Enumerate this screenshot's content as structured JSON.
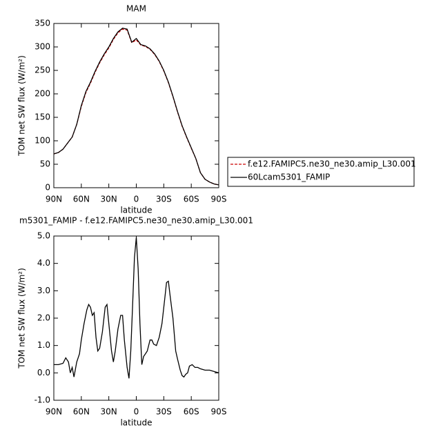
{
  "chart_data": [
    {
      "type": "line",
      "title": "MAM",
      "x_label": "latitude",
      "y_label": "TOM net SW flux (W/m²)",
      "xlim": [
        90,
        -90
      ],
      "xticks": [
        {
          "value": 90,
          "label": "90N"
        },
        {
          "value": 60,
          "label": "60N"
        },
        {
          "value": 30,
          "label": "30N"
        },
        0,
        {
          "value": -30,
          "label": "30S"
        },
        {
          "value": -60,
          "label": "60S"
        },
        {
          "value": -90,
          "label": "90S"
        }
      ],
      "ylim": [
        0,
        350
      ],
      "yticks": [
        0,
        50,
        100,
        150,
        200,
        250,
        300,
        350
      ],
      "legend": "right",
      "x": [
        90,
        85,
        80,
        75,
        70,
        65,
        60,
        55,
        50,
        45,
        40,
        35,
        30,
        25,
        20,
        15,
        10,
        5,
        0,
        -5,
        -10,
        -15,
        -20,
        -25,
        -30,
        -35,
        -40,
        -45,
        -50,
        -55,
        -60,
        -65,
        -70,
        -75,
        -80,
        -85,
        -90
      ],
      "series": [
        {
          "name": "f.e12.FAMIPC5.ne30_ne30.amip_L30.001",
          "color": "#cc0000",
          "linestyle": "dashed",
          "values": [
            72,
            75,
            82,
            95,
            108,
            135,
            173,
            203,
            223,
            246,
            266,
            283,
            298,
            316,
            330,
            338,
            336,
            309,
            315,
            304,
            301,
            295,
            284,
            269,
            249,
            224,
            194,
            161,
            131,
            107,
            84,
            62,
            32,
            18,
            12,
            8,
            6
          ]
        },
        {
          "name": "60Lcam5301_FAMIP",
          "color": "#000000",
          "linestyle": "solid",
          "values": [
            72,
            75,
            82,
            95,
            108,
            135,
            175,
            205,
            225,
            248,
            268,
            285,
            300,
            318,
            332,
            340,
            338,
            310,
            318,
            305,
            302,
            296,
            285,
            270,
            250,
            225,
            195,
            162,
            132,
            108,
            85,
            62,
            32,
            18,
            12,
            8,
            6
          ]
        }
      ]
    },
    {
      "type": "line",
      "title": "m5301_FAMIP - f.e12.FAMIPC5.ne30_ne30.amip_L30.001",
      "x_label": "latitude",
      "y_label": "TOM net SW flux (W/m²)",
      "xlim": [
        90,
        -90
      ],
      "xticks": [
        {
          "value": 90,
          "label": "90N"
        },
        {
          "value": 60,
          "label": "60N"
        },
        {
          "value": 30,
          "label": "30N"
        },
        0,
        {
          "value": -30,
          "label": "30S"
        },
        {
          "value": -60,
          "label": "60S"
        },
        {
          "value": -90,
          "label": "90S"
        }
      ],
      "ylim": [
        -1,
        5
      ],
      "yticks": [
        {
          "value": -1,
          "label": "-1.0"
        },
        {
          "value": 0,
          "label": "0.0"
        },
        {
          "value": 1,
          "label": "1.0"
        },
        {
          "value": 2,
          "label": "2.0"
        },
        {
          "value": 3,
          "label": "3.0"
        },
        {
          "value": 4,
          "label": "4.0"
        },
        {
          "value": 5,
          "label": "5.0"
        }
      ],
      "x": [
        90,
        85,
        80,
        77,
        74,
        72,
        70,
        68,
        65,
        62,
        60,
        57,
        54,
        52,
        50,
        48,
        46,
        44,
        42,
        40,
        37,
        34,
        32,
        30,
        27,
        25,
        23,
        20,
        17,
        15,
        13,
        10,
        8,
        6,
        4,
        2,
        0,
        -2,
        -4,
        -6,
        -8,
        -10,
        -12,
        -15,
        -17,
        -19,
        -22,
        -25,
        -28,
        -31,
        -33,
        -35,
        -37,
        -40,
        -43,
        -45,
        -48,
        -50,
        -52,
        -54,
        -56,
        -58,
        -61,
        -64,
        -67,
        -70,
        -75,
        -80,
        -85,
        -90
      ],
      "series": [
        {
          "color": "#000000",
          "linestyle": "solid",
          "values": [
            0.3,
            0.3,
            0.35,
            0.55,
            0.4,
            0.0,
            0.2,
            -0.15,
            0.4,
            0.7,
            1.2,
            1.8,
            2.3,
            2.5,
            2.4,
            2.1,
            2.2,
            1.3,
            0.8,
            0.9,
            1.5,
            2.4,
            2.5,
            1.8,
            0.8,
            0.4,
            0.8,
            1.6,
            2.1,
            2.1,
            1.2,
            0.2,
            -0.2,
            0.8,
            2.5,
            4.2,
            4.95,
            3.8,
            1.8,
            0.3,
            0.6,
            0.7,
            0.8,
            1.2,
            1.2,
            1.05,
            1.0,
            1.3,
            1.8,
            2.7,
            3.3,
            3.35,
            2.8,
            2.0,
            0.8,
            0.5,
            0.1,
            -0.1,
            -0.15,
            -0.05,
            0.0,
            0.25,
            0.3,
            0.2,
            0.2,
            0.15,
            0.1,
            0.1,
            0.05,
            0.0
          ]
        }
      ]
    }
  ]
}
